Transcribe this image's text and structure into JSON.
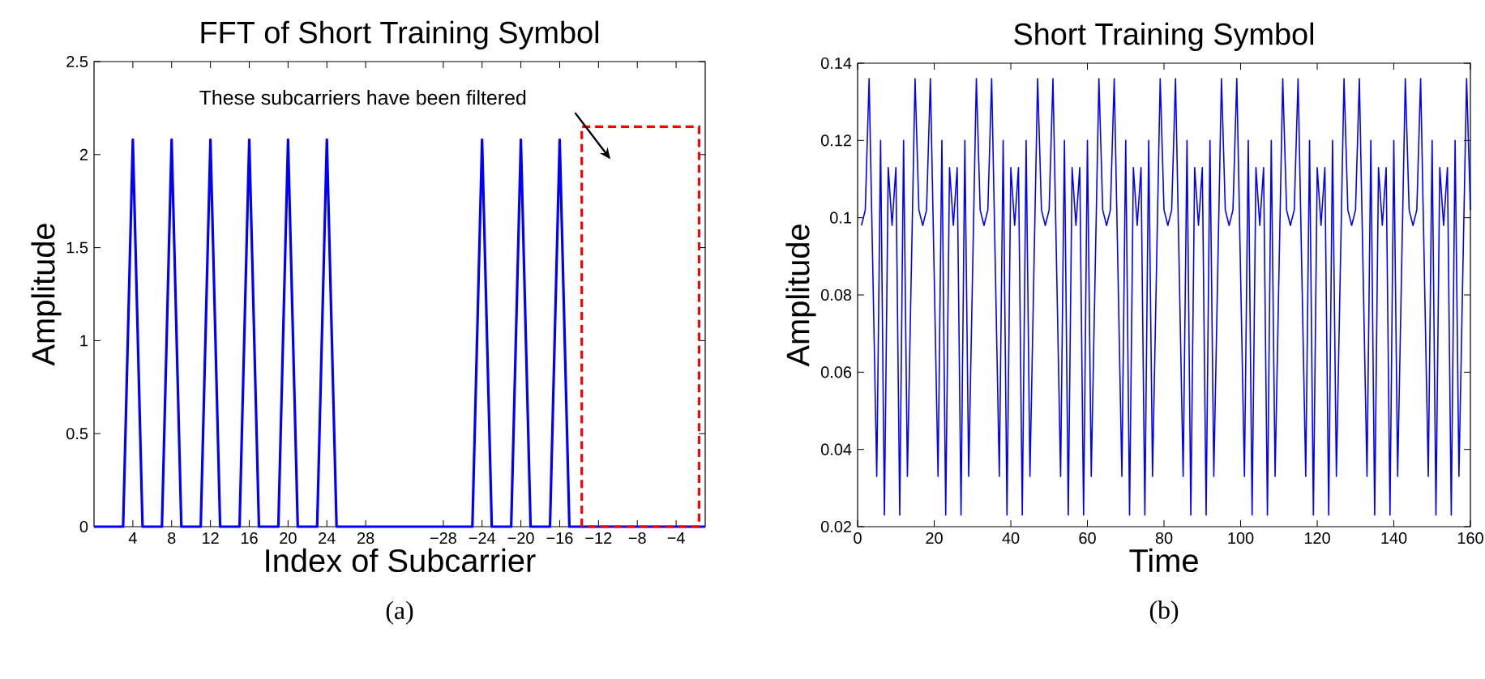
{
  "chart_data": [
    {
      "type": "line",
      "title": "FFT of Short Training Symbol",
      "xlabel": "Index of Subcarrier",
      "ylabel": "Amplitude",
      "color": "#0000ff",
      "categories": [
        null,
        null,
        null,
        null,
        "4",
        null,
        null,
        null,
        "8",
        null,
        null,
        null,
        "12",
        null,
        null,
        null,
        "16",
        null,
        null,
        null,
        "20",
        null,
        null,
        null,
        "24",
        null,
        null,
        null,
        "28",
        null,
        null,
        null,
        null,
        null,
        null,
        null,
        "−28",
        null,
        null,
        null,
        "−24",
        null,
        null,
        null,
        "−20",
        null,
        null,
        null,
        "−16",
        null,
        null,
        null,
        "−12",
        null,
        null,
        null,
        "−8",
        null,
        null,
        null,
        "−4",
        null,
        null,
        null
      ],
      "values": [
        0,
        0,
        0,
        0,
        2.08,
        0,
        0,
        0,
        2.08,
        0,
        0,
        0,
        2.08,
        0,
        0,
        0,
        2.08,
        0,
        0,
        0,
        2.08,
        0,
        0,
        0,
        2.08,
        0,
        0,
        0,
        0,
        0,
        0,
        0,
        0,
        0,
        0,
        0,
        0,
        0,
        0,
        0,
        2.08,
        0,
        0,
        0,
        2.08,
        0,
        0,
        0,
        2.08,
        0,
        0,
        0,
        0,
        0,
        0,
        0,
        0,
        0,
        0,
        0,
        0,
        0,
        0,
        0
      ],
      "ylim": [
        0,
        2.5
      ],
      "yticks": [
        0,
        0.5,
        1,
        1.5,
        2,
        2.5
      ],
      "annotations": [
        "These subcarriers have been filtered",
        "(a)"
      ]
    },
    {
      "type": "line",
      "title": "Short Training Symbol",
      "xlabel": "Time",
      "ylabel": "Amplitude",
      "color": "#0000ff",
      "x": [
        1,
        2,
        3,
        4,
        5,
        6,
        7,
        8,
        9,
        10,
        11,
        12,
        13,
        14,
        15,
        16,
        17,
        18,
        19,
        20,
        21,
        22,
        23,
        24,
        25,
        26,
        27,
        28,
        29,
        30,
        31,
        32,
        33,
        34,
        35,
        36,
        37,
        38,
        39,
        40,
        41,
        42,
        43,
        44,
        45,
        46,
        47,
        48,
        49,
        50,
        51,
        52,
        53,
        54,
        55,
        56,
        57,
        58,
        59,
        60,
        61,
        62,
        63,
        64,
        65,
        66,
        67,
        68,
        69,
        70,
        71,
        72,
        73,
        74,
        75,
        76,
        77,
        78,
        79,
        80,
        81,
        82,
        83,
        84,
        85,
        86,
        87,
        88,
        89,
        90,
        91,
        92,
        93,
        94,
        95,
        96,
        97,
        98,
        99,
        100,
        101,
        102,
        103,
        104,
        105,
        106,
        107,
        108,
        109,
        110,
        111,
        112,
        113,
        114,
        115,
        116,
        117,
        118,
        119,
        120,
        121,
        122,
        123,
        124,
        125,
        126,
        127,
        128,
        129,
        130,
        131,
        132,
        133,
        134,
        135,
        136,
        137,
        138,
        139,
        140,
        141,
        142,
        143,
        144,
        145,
        146,
        147,
        148,
        149,
        150,
        151,
        152,
        153,
        154,
        155,
        156,
        157,
        158,
        159,
        160
      ],
      "values": [
        0.098,
        0.102,
        0.136,
        0.085,
        0.033,
        0.12,
        0.023,
        0.113,
        0.098,
        0.113,
        0.023,
        0.12,
        0.033,
        0.085,
        0.136,
        0.102,
        0.098,
        0.102,
        0.136,
        0.085,
        0.033,
        0.12,
        0.023,
        0.113,
        0.098,
        0.113,
        0.023,
        0.12,
        0.033,
        0.085,
        0.136,
        0.102,
        0.098,
        0.102,
        0.136,
        0.085,
        0.033,
        0.12,
        0.023,
        0.113,
        0.098,
        0.113,
        0.023,
        0.12,
        0.033,
        0.085,
        0.136,
        0.102,
        0.098,
        0.102,
        0.136,
        0.085,
        0.033,
        0.12,
        0.023,
        0.113,
        0.098,
        0.113,
        0.023,
        0.12,
        0.033,
        0.085,
        0.136,
        0.102,
        0.098,
        0.102,
        0.136,
        0.085,
        0.033,
        0.12,
        0.023,
        0.113,
        0.098,
        0.113,
        0.023,
        0.12,
        0.033,
        0.085,
        0.136,
        0.102,
        0.098,
        0.102,
        0.136,
        0.085,
        0.033,
        0.12,
        0.023,
        0.113,
        0.098,
        0.113,
        0.023,
        0.12,
        0.033,
        0.085,
        0.136,
        0.102,
        0.098,
        0.102,
        0.136,
        0.085,
        0.033,
        0.12,
        0.023,
        0.113,
        0.098,
        0.113,
        0.023,
        0.12,
        0.033,
        0.085,
        0.136,
        0.102,
        0.098,
        0.102,
        0.136,
        0.085,
        0.033,
        0.12,
        0.023,
        0.113,
        0.098,
        0.113,
        0.023,
        0.12,
        0.033,
        0.085,
        0.136,
        0.102,
        0.098,
        0.102,
        0.136,
        0.085,
        0.033,
        0.12,
        0.023,
        0.113,
        0.098,
        0.113,
        0.023,
        0.12,
        0.033,
        0.085,
        0.136,
        0.102,
        0.098,
        0.102,
        0.136,
        0.085,
        0.033,
        0.12,
        0.023,
        0.113,
        0.098,
        0.113,
        0.023,
        0.12,
        0.033,
        0.085,
        0.136,
        0.102
      ],
      "xlim": [
        0,
        160
      ],
      "ylim": [
        0.02,
        0.14
      ],
      "xticks": [
        0,
        20,
        40,
        60,
        80,
        100,
        120,
        140,
        160
      ],
      "yticks": [
        0.02,
        0.04,
        0.06,
        0.08,
        0.1,
        0.12,
        0.14
      ],
      "annotations": [
        "(b)"
      ]
    }
  ]
}
